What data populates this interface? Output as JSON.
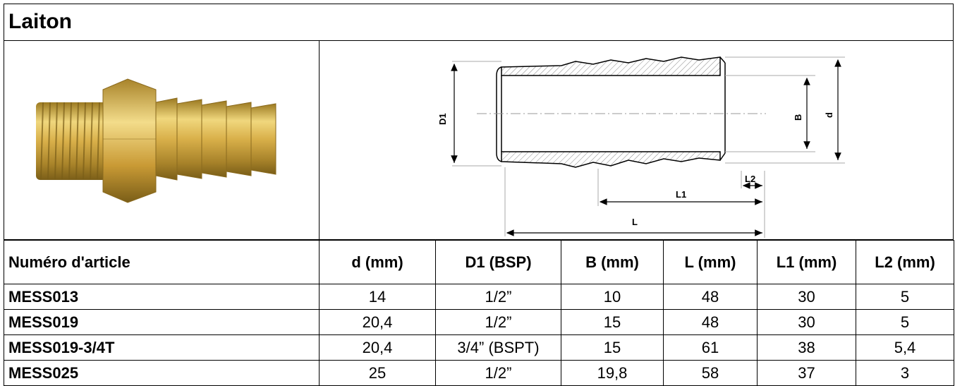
{
  "title": "Laiton",
  "photo": {
    "icon": "brass-hose-barb-fitting-icon",
    "colors": {
      "brass": "#d9b04a",
      "brass_dark": "#9c7a22",
      "brass_light": "#f0d77d"
    }
  },
  "drawing": {
    "icon": "hose-barb-technical-drawing-icon",
    "labels": {
      "D1": "D1",
      "B": "B",
      "d": "d",
      "L": "L",
      "L1": "L1",
      "L2": "L2"
    }
  },
  "table": {
    "headers": [
      "Numéro d'article",
      "d (mm)",
      "D1 (BSP)",
      "B (mm)",
      "L (mm)",
      "L1 (mm)",
      "L2 (mm)"
    ],
    "rows": [
      [
        "MESS013",
        "14",
        "1/2”",
        "10",
        "48",
        "30",
        "5"
      ],
      [
        "MESS019",
        "20,4",
        "1/2”",
        "15",
        "48",
        "30",
        "5"
      ],
      [
        "MESS019-3/4T",
        "20,4",
        "3/4” (BSPT)",
        "15",
        "61",
        "38",
        "5,4"
      ],
      [
        "MESS025",
        "25",
        "1/2”",
        "19,8",
        "58",
        "37",
        "3"
      ]
    ]
  }
}
